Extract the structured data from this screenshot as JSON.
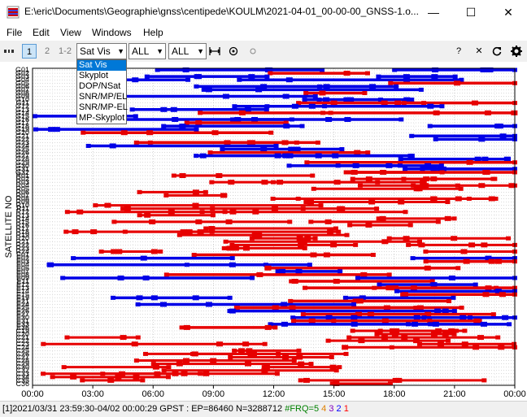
{
  "window": {
    "title": "E:\\eric\\Documents\\Geographie\\gnss\\centipede\\KOULM\\2021-04-01_00-00-00_GNSS-1.o...",
    "minimize_glyph": "—",
    "maximize_glyph": "☐",
    "close_glyph": "✕"
  },
  "menu": [
    "File",
    "Edit",
    "View",
    "Windows",
    "Help"
  ],
  "toolbar": {
    "btn1": "1",
    "btn2": "2",
    "btn12": "1-2",
    "plot_type": "Sat Vis",
    "sat_filter": "ALL",
    "freq_filter": "ALL",
    "help_glyph": "?",
    "close_glyph": "✕"
  },
  "plot_type_options": [
    "Sat Vis",
    "Skyplot",
    "DOP/NSat",
    "SNR/MP/EL",
    "SNR/MP-EL",
    "MP-Skyplot"
  ],
  "colors": {
    "blue": "#0000e6",
    "red": "#e60000",
    "grid": "#b4b4b4",
    "accent": "#0078d7"
  },
  "chart_data": {
    "type": "timeline",
    "ylabel": "SATELLITE NO",
    "x_ticks": [
      "00:00",
      "03:00",
      "06:00",
      "09:00",
      "12:00",
      "15:00",
      "18:00",
      "21:00",
      "00:00"
    ],
    "satellites": [
      "G01",
      "G02",
      "G03",
      "G04",
      "G05",
      "G06",
      "G07",
      "G08",
      "G09",
      "G10",
      "G11",
      "G12",
      "G13",
      "G14",
      "G15",
      "G16",
      "G17",
      "G18",
      "G19",
      "G20",
      "G21",
      "G22",
      "G23",
      "G24",
      "G25",
      "G26",
      "G27",
      "G28",
      "G29",
      "G30",
      "G31",
      "G32",
      "R01",
      "R02",
      "R03",
      "R04",
      "R05",
      "R06",
      "R07",
      "R08",
      "R09",
      "R10",
      "R11",
      "R12",
      "R13",
      "R14",
      "R15",
      "R16",
      "R17",
      "R18",
      "R19",
      "R20",
      "R21",
      "R22",
      "R23",
      "R24",
      "E01",
      "E02",
      "E03",
      "E04",
      "E05",
      "E07",
      "E08",
      "E09",
      "E11",
      "E12",
      "E13",
      "E14",
      "E15",
      "E19",
      "E21",
      "E24",
      "E25",
      "E26",
      "E27",
      "E30",
      "E31",
      "E33",
      "E36",
      "C19",
      "C20",
      "C21",
      "C22",
      "C23",
      "C24",
      "C25",
      "C26",
      "C27",
      "C28",
      "C29",
      "C30",
      "C32",
      "C33",
      "C34",
      "C35",
      "C36"
    ]
  },
  "status": {
    "prefix": "[1]",
    "text": "2021/03/31 23:59:30-04/02 00:00:29 GPST : EP=86460 N=3288712",
    "frq_label": "#FRQ=",
    "f1": "5",
    "f2": "4",
    "f3": "3",
    "f4": "2",
    "f5": "1"
  }
}
